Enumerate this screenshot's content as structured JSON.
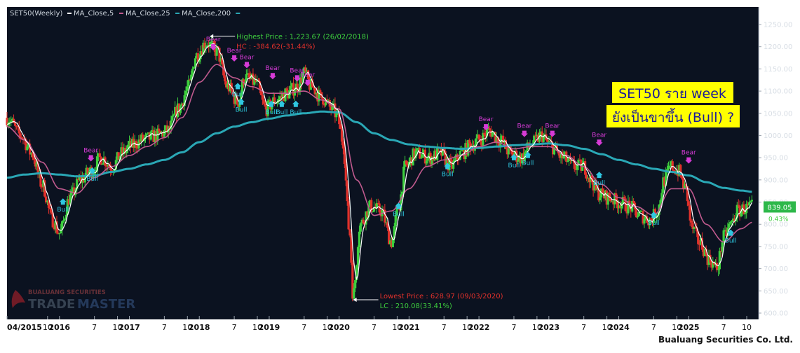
{
  "header": {
    "symbol": "SET50(Weekly)",
    "legend": [
      {
        "label": "MA_Close,5",
        "color": "#ffffff"
      },
      {
        "label": "MA_Close,25",
        "color": "#c05a8e"
      },
      {
        "label": "MA_Close,200",
        "color": "#2aa7b5"
      }
    ]
  },
  "headline": {
    "line1": "SET50 ราย week",
    "line2": "ยังเป็นขาขึ้น (Bull) ?"
  },
  "annotations": {
    "highest": "Highest Price : 1,223.67 (26/02/2018)",
    "hc": "HC : -384.62(-31.44%)",
    "lowest": "Lowest Price : 628.97 (09/03/2020)",
    "lc": "LC : 210.08(33.41%)"
  },
  "price_tag": {
    "value": "839.05",
    "change": "0.43%"
  },
  "watermark": {
    "top": "BUALUANG SECURITIES",
    "bottom_a": "TRADE",
    "bottom_b": "MASTER"
  },
  "footer": {
    "company": "Bualuang Securities Co. Ltd."
  },
  "colors": {
    "bg": "#0b1220",
    "up": "#3ecf3e",
    "down": "#e0312b",
    "ma5": "#ffffff",
    "ma25": "#c05a8e",
    "ma200": "#2aa7b5",
    "bear": "#d63bd6",
    "bull": "#2fc7e0",
    "headline_bg": "#ffff00",
    "price_tag_bg": "#2db84a"
  },
  "chart_data": {
    "type": "line",
    "title": "SET50(Weekly)",
    "xlabel": "",
    "ylabel": "",
    "ylim": [
      600,
      1260
    ],
    "xlim": [
      2015.25,
      2025.92
    ],
    "y_ticks": [
      "1250.00",
      "1200.00",
      "1150.00",
      "1100.00",
      "1050.00",
      "1000.00",
      "950.00",
      "900.00",
      "850.00",
      "800.00",
      "750.00",
      "700.00",
      "650.00",
      "600.00"
    ],
    "x_ticks": [
      {
        "x": 2015.25,
        "label": "04/2015"
      },
      {
        "x": 2015.83,
        "label": "10"
      },
      {
        "x": 2016.0,
        "label": "2016"
      },
      {
        "x": 2016.5,
        "label": "7"
      },
      {
        "x": 2016.83,
        "label": "10"
      },
      {
        "x": 2017.0,
        "label": "2017"
      },
      {
        "x": 2017.5,
        "label": "7"
      },
      {
        "x": 2017.83,
        "label": "10"
      },
      {
        "x": 2018.0,
        "label": "2018"
      },
      {
        "x": 2018.5,
        "label": "7"
      },
      {
        "x": 2018.83,
        "label": "10"
      },
      {
        "x": 2019.0,
        "label": "2019"
      },
      {
        "x": 2019.5,
        "label": "7"
      },
      {
        "x": 2019.83,
        "label": "10"
      },
      {
        "x": 2020.0,
        "label": "2020"
      },
      {
        "x": 2020.5,
        "label": "7"
      },
      {
        "x": 2020.83,
        "label": "10"
      },
      {
        "x": 2021.0,
        "label": "2021"
      },
      {
        "x": 2021.5,
        "label": "7"
      },
      {
        "x": 2021.83,
        "label": "10"
      },
      {
        "x": 2022.0,
        "label": "2022"
      },
      {
        "x": 2022.5,
        "label": "7"
      },
      {
        "x": 2022.83,
        "label": "10"
      },
      {
        "x": 2023.0,
        "label": "2023"
      },
      {
        "x": 2023.5,
        "label": "7"
      },
      {
        "x": 2023.83,
        "label": "10"
      },
      {
        "x": 2024.0,
        "label": "2024"
      },
      {
        "x": 2024.5,
        "label": "7"
      },
      {
        "x": 2024.83,
        "label": "10"
      },
      {
        "x": 2025.0,
        "label": "2025"
      },
      {
        "x": 2025.5,
        "label": "7"
      },
      {
        "x": 2025.83,
        "label": "10"
      }
    ],
    "close_anchors": [
      [
        2015.25,
        1040
      ],
      [
        2015.45,
        1000
      ],
      [
        2015.6,
        960
      ],
      [
        2015.75,
        890
      ],
      [
        2015.9,
        810
      ],
      [
        2016.0,
        780
      ],
      [
        2016.15,
        860
      ],
      [
        2016.3,
        900
      ],
      [
        2016.45,
        920
      ],
      [
        2016.6,
        950
      ],
      [
        2016.75,
        930
      ],
      [
        2016.9,
        960
      ],
      [
        2017.0,
        975
      ],
      [
        2017.2,
        990
      ],
      [
        2017.4,
        1000
      ],
      [
        2017.55,
        1010
      ],
      [
        2017.7,
        1060
      ],
      [
        2017.85,
        1110
      ],
      [
        2017.95,
        1180
      ],
      [
        2018.1,
        1210
      ],
      [
        2018.25,
        1190
      ],
      [
        2018.4,
        1110
      ],
      [
        2018.55,
        1075
      ],
      [
        2018.65,
        1130
      ],
      [
        2018.8,
        1120
      ],
      [
        2018.95,
        1060
      ],
      [
        2019.1,
        1080
      ],
      [
        2019.25,
        1095
      ],
      [
        2019.4,
        1110
      ],
      [
        2019.5,
        1140
      ],
      [
        2019.6,
        1110
      ],
      [
        2019.75,
        1085
      ],
      [
        2019.9,
        1060
      ],
      [
        2019.97,
        1045
      ],
      [
        2020.05,
        990
      ],
      [
        2020.15,
        780
      ],
      [
        2020.2,
        640
      ],
      [
        2020.3,
        800
      ],
      [
        2020.45,
        840
      ],
      [
        2020.6,
        830
      ],
      [
        2020.75,
        760
      ],
      [
        2020.85,
        840
      ],
      [
        2020.95,
        930
      ],
      [
        2021.1,
        960
      ],
      [
        2021.3,
        950
      ],
      [
        2021.45,
        960
      ],
      [
        2021.6,
        930
      ],
      [
        2021.75,
        960
      ],
      [
        2021.9,
        980
      ],
      [
        2022.0,
        990
      ],
      [
        2022.15,
        1010
      ],
      [
        2022.3,
        990
      ],
      [
        2022.45,
        960
      ],
      [
        2022.6,
        950
      ],
      [
        2022.75,
        980
      ],
      [
        2022.9,
        1000
      ],
      [
        2023.0,
        980
      ],
      [
        2023.2,
        950
      ],
      [
        2023.35,
        930
      ],
      [
        2023.5,
        930
      ],
      [
        2023.6,
        900
      ],
      [
        2023.7,
        870
      ],
      [
        2023.85,
        860
      ],
      [
        2024.0,
        850
      ],
      [
        2024.15,
        840
      ],
      [
        2024.3,
        820
      ],
      [
        2024.45,
        810
      ],
      [
        2024.55,
        830
      ],
      [
        2024.65,
        900
      ],
      [
        2024.75,
        930
      ],
      [
        2024.85,
        920
      ],
      [
        2024.95,
        880
      ],
      [
        2025.05,
        790
      ],
      [
        2025.15,
        760
      ],
      [
        2025.3,
        720
      ],
      [
        2025.4,
        700
      ],
      [
        2025.5,
        770
      ],
      [
        2025.6,
        800
      ],
      [
        2025.7,
        830
      ],
      [
        2025.8,
        835
      ],
      [
        2025.92,
        839.05
      ]
    ],
    "ma25_anchors": [
      [
        2015.25,
        1020
      ],
      [
        2015.5,
        990
      ],
      [
        2015.75,
        940
      ],
      [
        2016.0,
        880
      ],
      [
        2016.25,
        870
      ],
      [
        2016.5,
        905
      ],
      [
        2016.75,
        930
      ],
      [
        2017.0,
        955
      ],
      [
        2017.25,
        975
      ],
      [
        2017.5,
        995
      ],
      [
        2017.75,
        1040
      ],
      [
        2018.0,
        1120
      ],
      [
        2018.25,
        1160
      ],
      [
        2018.5,
        1130
      ],
      [
        2018.75,
        1110
      ],
      [
        2019.0,
        1095
      ],
      [
        2019.25,
        1095
      ],
      [
        2019.5,
        1100
      ],
      [
        2019.75,
        1080
      ],
      [
        2020.0,
        1060
      ],
      [
        2020.25,
        900
      ],
      [
        2020.5,
        820
      ],
      [
        2020.75,
        830
      ],
      [
        2021.0,
        880
      ],
      [
        2021.25,
        930
      ],
      [
        2021.5,
        945
      ],
      [
        2021.75,
        955
      ],
      [
        2022.0,
        975
      ],
      [
        2022.25,
        985
      ],
      [
        2022.5,
        970
      ],
      [
        2022.75,
        975
      ],
      [
        2023.0,
        975
      ],
      [
        2023.25,
        955
      ],
      [
        2023.5,
        930
      ],
      [
        2023.75,
        890
      ],
      [
        2024.0,
        860
      ],
      [
        2024.25,
        840
      ],
      [
        2024.5,
        820
      ],
      [
        2024.75,
        880
      ],
      [
        2025.0,
        880
      ],
      [
        2025.25,
        800
      ],
      [
        2025.5,
        760
      ],
      [
        2025.75,
        790
      ],
      [
        2025.92,
        805
      ]
    ],
    "ma200_anchors": [
      [
        2015.25,
        905
      ],
      [
        2015.5,
        912
      ],
      [
        2015.75,
        915
      ],
      [
        2016.0,
        912
      ],
      [
        2016.25,
        908
      ],
      [
        2016.5,
        910
      ],
      [
        2016.75,
        918
      ],
      [
        2017.0,
        925
      ],
      [
        2017.25,
        935
      ],
      [
        2017.5,
        945
      ],
      [
        2017.75,
        962
      ],
      [
        2018.0,
        985
      ],
      [
        2018.25,
        1005
      ],
      [
        2018.5,
        1020
      ],
      [
        2018.75,
        1030
      ],
      [
        2019.0,
        1038
      ],
      [
        2019.25,
        1045
      ],
      [
        2019.5,
        1050
      ],
      [
        2019.75,
        1054
      ],
      [
        2020.0,
        1052
      ],
      [
        2020.25,
        1030
      ],
      [
        2020.5,
        1005
      ],
      [
        2020.75,
        990
      ],
      [
        2021.0,
        980
      ],
      [
        2021.25,
        975
      ],
      [
        2021.5,
        972
      ],
      [
        2021.75,
        970
      ],
      [
        2022.0,
        972
      ],
      [
        2022.25,
        975
      ],
      [
        2022.5,
        978
      ],
      [
        2022.75,
        980
      ],
      [
        2023.0,
        982
      ],
      [
        2023.25,
        978
      ],
      [
        2023.5,
        970
      ],
      [
        2023.75,
        958
      ],
      [
        2024.0,
        945
      ],
      [
        2024.25,
        935
      ],
      [
        2024.5,
        925
      ],
      [
        2024.75,
        918
      ],
      [
        2025.0,
        910
      ],
      [
        2025.25,
        895
      ],
      [
        2025.5,
        882
      ],
      [
        2025.75,
        876
      ],
      [
        2025.92,
        873
      ]
    ],
    "signals": [
      {
        "type": "Bear",
        "x": 2016.45,
        "y": 940
      },
      {
        "type": "Bull",
        "x": 2016.47,
        "y": 930
      },
      {
        "type": "Bull",
        "x": 2016.05,
        "y": 860
      },
      {
        "type": "Bear",
        "x": 2018.2,
        "y": 1190
      },
      {
        "type": "Bear",
        "x": 2018.5,
        "y": 1165
      },
      {
        "type": "Bull",
        "x": 2018.55,
        "y": 1120
      },
      {
        "type": "Bull",
        "x": 2018.6,
        "y": 1085
      },
      {
        "type": "Bear",
        "x": 2018.68,
        "y": 1150
      },
      {
        "type": "Bear",
        "x": 2019.05,
        "y": 1125
      },
      {
        "type": "Bull",
        "x": 2019.03,
        "y": 1080
      },
      {
        "type": "Bull",
        "x": 2019.18,
        "y": 1080
      },
      {
        "type": "Bear",
        "x": 2019.4,
        "y": 1120
      },
      {
        "type": "Bull",
        "x": 2019.38,
        "y": 1080
      },
      {
        "type": "Bear",
        "x": 2019.55,
        "y": 1110
      },
      {
        "type": "Bull",
        "x": 2020.85,
        "y": 850
      },
      {
        "type": "Bull",
        "x": 2021.55,
        "y": 940
      },
      {
        "type": "Bear",
        "x": 2022.1,
        "y": 1010
      },
      {
        "type": "Bear",
        "x": 2022.65,
        "y": 995
      },
      {
        "type": "Bull",
        "x": 2022.5,
        "y": 960
      },
      {
        "type": "Bull",
        "x": 2022.7,
        "y": 965
      },
      {
        "type": "Bear",
        "x": 2023.05,
        "y": 995
      },
      {
        "type": "Bear",
        "x": 2023.72,
        "y": 975
      },
      {
        "type": "Bull",
        "x": 2023.72,
        "y": 920
      },
      {
        "type": "Bull",
        "x": 2024.5,
        "y": 830
      },
      {
        "type": "Bear",
        "x": 2025.0,
        "y": 935
      },
      {
        "type": "Bull",
        "x": 2025.6,
        "y": 790
      }
    ]
  }
}
